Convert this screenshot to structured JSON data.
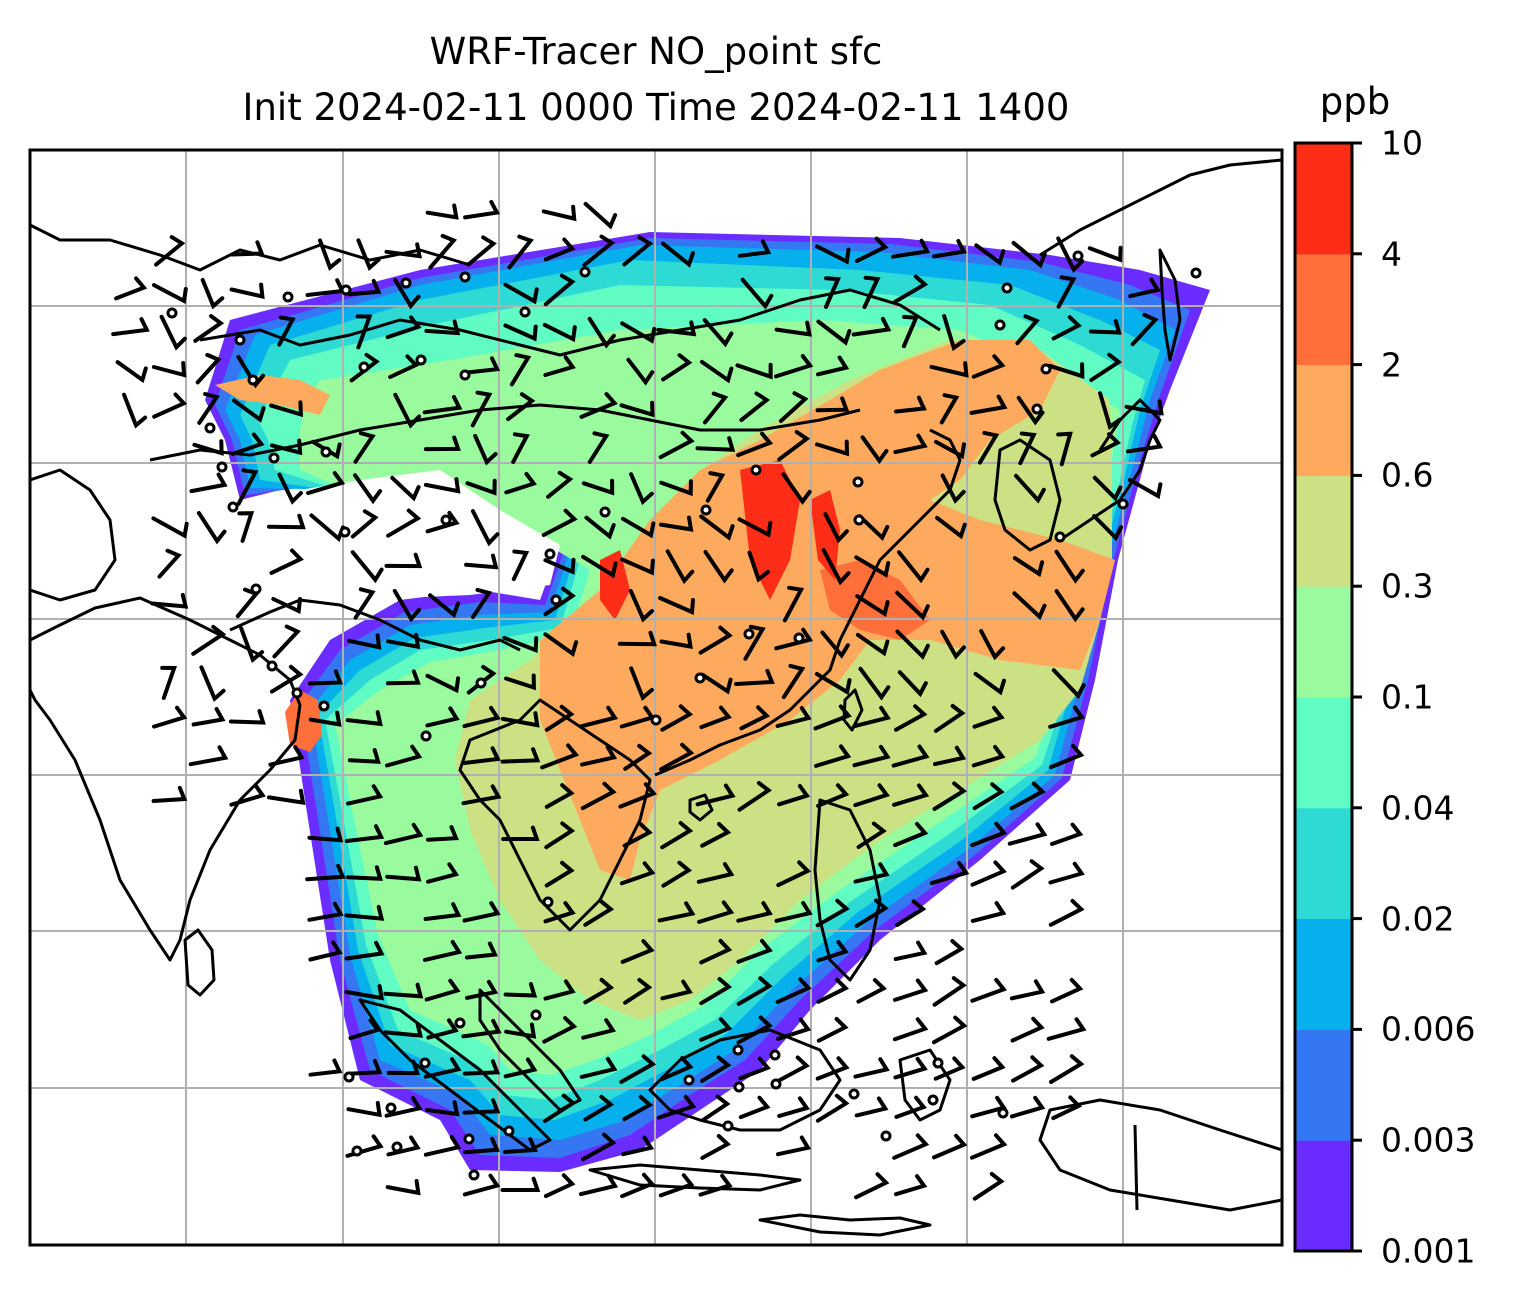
{
  "title_line1": "WRF-Tracer NO_point sfc",
  "title_line2": "Init 2024-02-11 0000 Time 2024-02-11 1400",
  "colorbar": {
    "unit": "ppb",
    "ticks": [
      "0.001",
      "0.003",
      "0.006",
      "0.02",
      "0.04",
      "0.1",
      "0.3",
      "0.6",
      "2",
      "4",
      "10"
    ],
    "colors": [
      "#6a2cff",
      "#3576f2",
      "#06b0ec",
      "#2edbd4",
      "#61fcc3",
      "#99fa9e",
      "#cbe183",
      "#fdaa5e",
      "#fe6f39",
      "#fe2d17"
    ]
  },
  "map": {
    "gridlines": true,
    "grid_color": "#b0b0b0",
    "land_outline_color": "#000000",
    "wind_barb_color": "#000000"
  }
}
